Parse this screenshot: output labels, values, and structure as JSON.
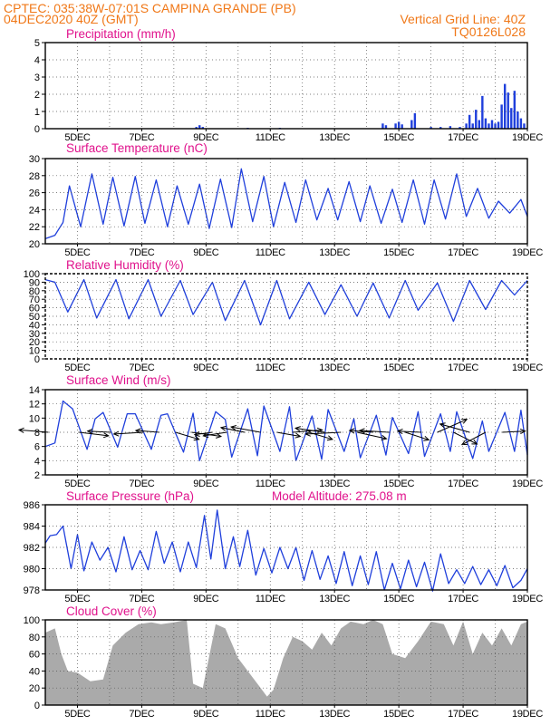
{
  "header": {
    "line1": "CPTEC:   035:38W-07:01S   CAMPINA GRANDE (PB)",
    "line2": "04DEC2020 40Z (GMT)",
    "right1": "Vertical Grid Line: 40Z",
    "right2": "TQ0126L028"
  },
  "colors": {
    "header": "#f07818",
    "panel_title": "#e0128c",
    "series": "#1f3fdc",
    "cloud_fill": "#aaaaaa",
    "wind_arrow": "#000000"
  },
  "chart_data": [
    {
      "type": "bar",
      "title": "Precipitation (mm/h)",
      "x_range_days": [
        4,
        19
      ],
      "x_tick_labels": [
        "5DEC",
        "7DEC",
        "9DEC",
        "11DEC",
        "13DEC",
        "15DEC",
        "17DEC",
        "19DEC"
      ],
      "ylim": [
        0,
        5
      ],
      "y_ticks": [
        0,
        1,
        2,
        3,
        4,
        5
      ],
      "grid": true,
      "series": [
        {
          "x": [
            8.7,
            8.8,
            8.9,
            10.3,
            11.3,
            14.5,
            14.6,
            14.9,
            15.0,
            15.1,
            15.4,
            15.5,
            16.0,
            16.3,
            16.6,
            16.9,
            17.1,
            17.2,
            17.3,
            17.4,
            17.5,
            17.6,
            17.7,
            17.8,
            17.9,
            18.0,
            18.1,
            18.2,
            18.3,
            18.4,
            18.5,
            18.6,
            18.7,
            18.8,
            18.9
          ],
          "y": [
            0.1,
            0.2,
            0.1,
            0.05,
            0.05,
            0.3,
            0.2,
            0.3,
            0.4,
            0.25,
            0.5,
            0.9,
            0.1,
            0.1,
            0.15,
            0.1,
            0.3,
            0.8,
            0.3,
            1.1,
            0.5,
            1.9,
            0.6,
            0.3,
            0.5,
            0.3,
            0.4,
            1.4,
            2.6,
            2.1,
            1.2,
            2.2,
            1.0,
            0.6,
            0.3
          ]
        }
      ]
    },
    {
      "type": "line",
      "title": "Surface Temperature (nC)",
      "x_range_days": [
        4,
        19
      ],
      "x_tick_labels": [
        "5DEC",
        "7DEC",
        "9DEC",
        "11DEC",
        "13DEC",
        "15DEC",
        "17DEC",
        "19DEC"
      ],
      "ylim": [
        20,
        30
      ],
      "y_ticks": [
        20,
        22,
        24,
        26,
        28,
        30
      ],
      "grid": true,
      "series": [
        {
          "x": [
            4.0,
            4.3,
            4.55,
            4.75,
            5.1,
            5.45,
            5.8,
            6.1,
            6.45,
            6.8,
            7.1,
            7.45,
            7.8,
            8.1,
            8.45,
            8.8,
            9.1,
            9.45,
            9.8,
            10.1,
            10.45,
            10.8,
            11.1,
            11.45,
            11.8,
            12.1,
            12.45,
            12.8,
            13.1,
            13.45,
            13.8,
            14.1,
            14.45,
            14.8,
            15.1,
            15.45,
            15.8,
            16.1,
            16.45,
            16.8,
            17.1,
            17.45,
            17.8,
            18.1,
            18.45,
            18.8,
            19.0
          ],
          "y": [
            20.6,
            21.0,
            22.5,
            26.8,
            22.0,
            28.2,
            22.3,
            27.8,
            22.1,
            27.9,
            22.4,
            27.5,
            22.0,
            26.8,
            22.3,
            27.0,
            21.8,
            27.6,
            21.9,
            28.8,
            22.6,
            27.9,
            22.0,
            27.2,
            22.5,
            27.5,
            22.8,
            26.5,
            22.8,
            27.3,
            22.6,
            26.8,
            22.4,
            26.4,
            22.5,
            27.5,
            22.3,
            27.5,
            22.9,
            28.2,
            23.2,
            26.5,
            23.0,
            25.0,
            23.6,
            25.2,
            23.2
          ]
        }
      ]
    },
    {
      "type": "line",
      "title": "Relative Humidity (%)",
      "x_range_days": [
        4,
        19
      ],
      "x_tick_labels": [
        "5DEC",
        "7DEC",
        "9DEC",
        "11DEC",
        "13DEC",
        "15DEC",
        "17DEC",
        "19DEC"
      ],
      "ylim": [
        0,
        100
      ],
      "y_ticks": [
        0,
        10,
        20,
        30,
        40,
        50,
        60,
        70,
        80,
        90,
        100
      ],
      "grid": true,
      "series": [
        {
          "x": [
            4.0,
            4.3,
            4.7,
            5.2,
            5.6,
            6.2,
            6.6,
            7.2,
            7.6,
            8.2,
            8.6,
            9.2,
            9.6,
            10.2,
            10.7,
            11.2,
            11.6,
            12.2,
            12.7,
            13.2,
            13.7,
            14.2,
            14.7,
            15.2,
            15.6,
            16.2,
            16.7,
            17.2,
            17.7,
            18.2,
            18.6,
            19.0
          ],
          "y": [
            93,
            90,
            55,
            93,
            48,
            93,
            47,
            93,
            50,
            92,
            52,
            90,
            45,
            92,
            40,
            92,
            47,
            90,
            52,
            87,
            50,
            89,
            48,
            92,
            57,
            89,
            44,
            92,
            58,
            92,
            75,
            92
          ]
        }
      ]
    },
    {
      "type": "line",
      "title": "Surface Wind (m/s)",
      "x_range_days": [
        4,
        19
      ],
      "x_tick_labels": [
        "5DEC",
        "7DEC",
        "9DEC",
        "11DEC",
        "13DEC",
        "15DEC",
        "17DEC",
        "19DEC"
      ],
      "ylim": [
        2,
        14
      ],
      "y_ticks": [
        2,
        4,
        6,
        8,
        10,
        12,
        14
      ],
      "grid": true,
      "arrow_reference": 8,
      "series": [
        {
          "x": [
            4.0,
            4.3,
            4.55,
            4.85,
            5.3,
            5.55,
            5.8,
            6.25,
            6.55,
            6.8,
            7.3,
            7.6,
            7.8,
            8.3,
            8.6,
            8.8,
            9.3,
            9.6,
            9.8,
            10.3,
            10.6,
            10.8,
            11.3,
            11.6,
            11.8,
            12.3,
            12.6,
            12.8,
            13.3,
            13.6,
            13.8,
            14.3,
            14.6,
            14.8,
            15.3,
            15.6,
            15.8,
            16.3,
            16.6,
            16.8,
            17.3,
            17.6,
            17.8,
            18.3,
            18.6,
            18.8,
            19.0
          ],
          "y": [
            6.0,
            6.5,
            12.4,
            11.3,
            5.6,
            9.9,
            10.8,
            5.9,
            10.6,
            10.6,
            5.6,
            10.4,
            10.6,
            5.2,
            10.7,
            4.0,
            10.9,
            9.8,
            4.5,
            11.3,
            4.7,
            11.7,
            5.3,
            11.6,
            4.0,
            10.3,
            4.2,
            11.2,
            5.3,
            9.9,
            4.4,
            10.4,
            4.8,
            10.1,
            5.0,
            10.9,
            4.6,
            10.6,
            5.3,
            10.9,
            4.3,
            9.6,
            5.3,
            10.8,
            5.3,
            11.1,
            4.8
          ]
        }
      ],
      "wind_vectors": {
        "x": [
          4.1,
          5.05,
          6.05,
          7.05,
          7.55,
          8.05,
          8.55,
          9.2,
          9.65,
          10.2,
          10.7,
          11.2,
          11.7,
          12.2,
          12.7,
          13.2,
          13.7,
          14.2,
          14.7,
          15.2,
          15.7,
          16.2,
          16.7,
          17.2,
          17.7,
          18.2
        ],
        "u": [
          -5,
          5,
          -4,
          -5,
          -4,
          4,
          5,
          -3,
          -4,
          -4,
          -5,
          4,
          5,
          4,
          -5,
          -6,
          5,
          -4,
          -5,
          4,
          -4,
          5,
          4,
          -5,
          -4,
          4
        ],
        "v": [
          0.4,
          -0.6,
          0.2,
          -0.3,
          0.3,
          -1.2,
          -0.7,
          -0.4,
          -0.6,
          0.8,
          0.9,
          -0.7,
          0.4,
          -1.2,
          0.7,
          -0.3,
          -1.1,
          0.3,
          0.3,
          -1.3,
          0.2,
          2.2,
          -2.0,
          1.4,
          -2.1,
          0.2
        ]
      }
    },
    {
      "type": "line",
      "title": "Surface Pressure (hPa)",
      "annotation": "Model Altitude: 275.08 m",
      "x_range_days": [
        4,
        19
      ],
      "x_tick_labels": [
        "5DEC",
        "7DEC",
        "9DEC",
        "11DEC",
        "13DEC",
        "15DEC",
        "17DEC",
        "19DEC"
      ],
      "ylim": [
        978,
        986
      ],
      "y_ticks": [
        978,
        980,
        982,
        984,
        986
      ],
      "grid": true,
      "series": [
        {
          "x": [
            4.0,
            4.15,
            4.35,
            4.55,
            4.8,
            5.0,
            5.2,
            5.45,
            5.7,
            5.95,
            6.2,
            6.45,
            6.7,
            6.95,
            7.2,
            7.45,
            7.7,
            7.95,
            8.2,
            8.45,
            8.7,
            8.95,
            9.15,
            9.35,
            9.6,
            9.85,
            10.05,
            10.3,
            10.55,
            10.8,
            11.05,
            11.3,
            11.55,
            11.8,
            12.05,
            12.3,
            12.55,
            12.8,
            13.05,
            13.3,
            13.55,
            13.8,
            14.05,
            14.3,
            14.55,
            14.8,
            15.05,
            15.3,
            15.55,
            15.8,
            16.05,
            16.3,
            16.55,
            16.8,
            17.05,
            17.3,
            17.55,
            17.8,
            18.05,
            18.3,
            18.55,
            18.8,
            19.0
          ],
          "y": [
            982.4,
            983.1,
            983.2,
            984.0,
            980.0,
            983.2,
            979.8,
            982.5,
            980.8,
            982.0,
            979.7,
            983.0,
            979.9,
            981.7,
            979.9,
            983.5,
            980.5,
            982.5,
            979.7,
            982.5,
            980.1,
            985.0,
            980.9,
            985.5,
            980.0,
            983.0,
            980.2,
            983.6,
            979.4,
            981.9,
            979.6,
            982.0,
            980.0,
            982.0,
            978.9,
            981.7,
            979.0,
            981.2,
            978.6,
            981.6,
            978.4,
            981.2,
            978.5,
            981.6,
            978.0,
            980.5,
            978.1,
            980.8,
            978.3,
            980.6,
            977.9,
            981.4,
            978.6,
            979.9,
            978.6,
            980.2,
            978.5,
            979.9,
            978.4,
            980.3,
            978.2,
            978.9,
            980.0
          ]
        }
      ]
    },
    {
      "type": "area",
      "title": "Cloud Cover (%)",
      "x_range_days": [
        4,
        19
      ],
      "x_tick_labels": [
        "5DEC",
        "7DEC",
        "9DEC",
        "11DEC",
        "13DEC",
        "15DEC",
        "17DEC",
        "19DEC"
      ],
      "ylim": [
        0,
        100
      ],
      "y_ticks": [
        0,
        20,
        40,
        60,
        80,
        100
      ],
      "grid": true,
      "series": [
        {
          "x": [
            4.0,
            4.3,
            4.5,
            4.7,
            5.0,
            5.4,
            5.8,
            6.1,
            6.5,
            6.9,
            7.3,
            7.6,
            8.0,
            8.4,
            8.6,
            8.9,
            9.3,
            9.6,
            10.0,
            10.3,
            10.6,
            10.9,
            11.1,
            11.4,
            11.7,
            12.0,
            12.3,
            12.6,
            12.9,
            13.2,
            13.5,
            13.9,
            14.2,
            14.5,
            14.8,
            15.2,
            15.6,
            16.0,
            16.4,
            16.7,
            17.0,
            17.3,
            17.6,
            17.9,
            18.2,
            18.5,
            18.8,
            19.0
          ],
          "y": [
            85,
            90,
            60,
            40,
            38,
            28,
            30,
            70,
            85,
            95,
            97,
            95,
            97,
            100,
            25,
            20,
            95,
            90,
            55,
            40,
            25,
            10,
            18,
            55,
            80,
            75,
            65,
            85,
            70,
            90,
            98,
            95,
            100,
            95,
            60,
            55,
            75,
            98,
            95,
            70,
            98,
            60,
            85,
            70,
            90,
            70,
            95,
            98
          ]
        }
      ]
    }
  ]
}
